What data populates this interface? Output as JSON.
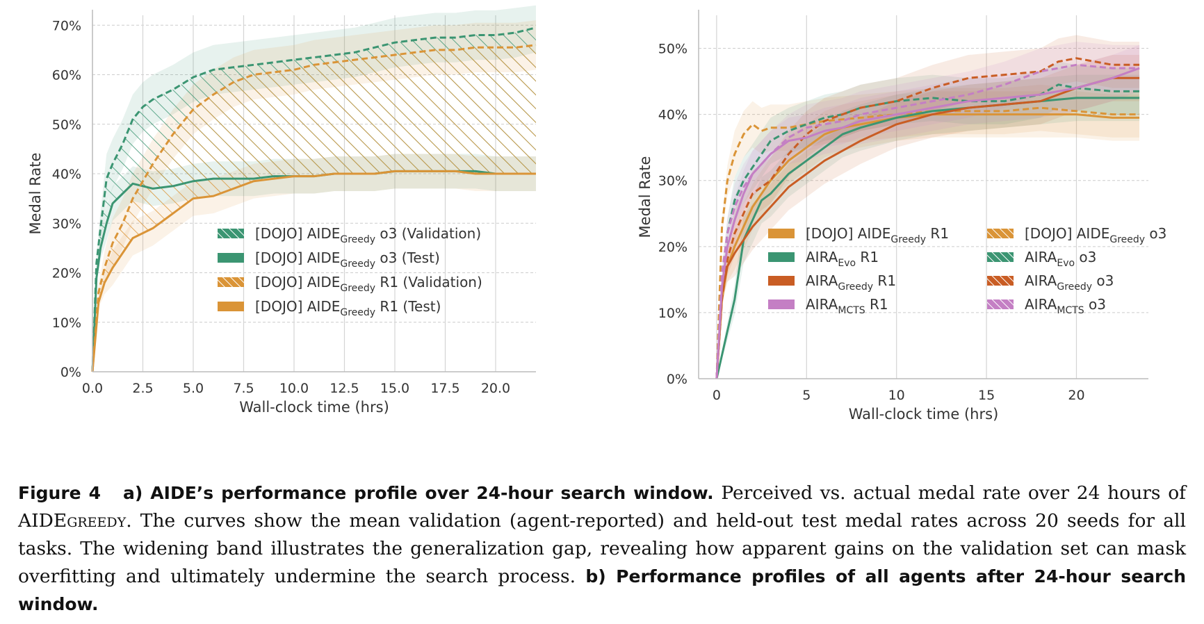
{
  "colors": {
    "green": "#3b9572",
    "orange": "#da9437",
    "rust": "#c95d24",
    "pink": "#c47fc4"
  },
  "chart_data": [
    {
      "type": "line",
      "panel": "a",
      "xlabel": "Wall-clock time (hrs)",
      "ylabel": "Medal Rate",
      "xlim": [
        0,
        22
      ],
      "ylim": [
        0,
        72
      ],
      "xticks": [
        "0.0",
        "2.5",
        "5.0",
        "7.5",
        "10.0",
        "12.5",
        "15.0",
        "17.5",
        "20.0"
      ],
      "yticks": [
        "0%",
        "10%",
        "20%",
        "30%",
        "40%",
        "50%",
        "60%",
        "70%"
      ],
      "grid": true,
      "legend_position": "center-right",
      "series": [
        {
          "name_main": "[DOJO] AIDE",
          "name_sub": "Greedy",
          "name_tail": "o3 (Validation)",
          "color": "green",
          "dash": true,
          "x": [
            0,
            0.2,
            0.4,
            0.7,
            1,
            1.5,
            2,
            2.5,
            3,
            4,
            5,
            6,
            7,
            8,
            9,
            10,
            11,
            12,
            13,
            14,
            15,
            16,
            17,
            18,
            19,
            20,
            21,
            22
          ],
          "y": [
            0,
            22,
            29,
            39,
            42,
            46,
            51,
            53.5,
            55,
            57,
            59.5,
            61,
            61.5,
            62,
            62.5,
            63,
            63.5,
            64,
            64.5,
            65.5,
            66.5,
            67,
            67.5,
            67.5,
            68,
            68,
            68.5,
            69.5
          ]
        },
        {
          "name_main": "[DOJO] AIDE",
          "name_sub": "Greedy",
          "name_tail": "o3 (Test)",
          "color": "green",
          "dash": false,
          "x": [
            0,
            0.2,
            0.4,
            0.7,
            1,
            1.5,
            2,
            2.5,
            3,
            4,
            5,
            6,
            7,
            8,
            9,
            10,
            11,
            12,
            13,
            14,
            15,
            16,
            17,
            18,
            19,
            20,
            21,
            22
          ],
          "y": [
            0,
            19,
            25,
            30,
            34,
            36,
            38,
            37.5,
            37,
            37.5,
            38.5,
            39,
            39,
            39,
            39.5,
            39.5,
            39.5,
            40,
            40,
            40,
            40.5,
            40.5,
            40.5,
            40.5,
            40.5,
            40,
            40,
            40
          ]
        },
        {
          "name_main": "[DOJO] AIDE",
          "name_sub": "Greedy",
          "name_tail": "R1 (Validation)",
          "color": "orange",
          "dash": true,
          "x": [
            0,
            0.3,
            0.6,
            1,
            1.5,
            2,
            3,
            4,
            5,
            6,
            7,
            8,
            9,
            10,
            11,
            12,
            13,
            14,
            15,
            16,
            17,
            18,
            19,
            20,
            21,
            22
          ],
          "y": [
            0,
            16,
            21,
            26,
            30,
            35,
            42,
            48,
            53,
            56,
            58.5,
            60,
            60.5,
            61,
            62,
            62.5,
            63,
            63.5,
            64,
            64.5,
            65,
            65,
            65.5,
            65.5,
            65.5,
            66
          ]
        },
        {
          "name_main": "[DOJO] AIDE",
          "name_sub": "Greedy",
          "name_tail": "R1 (Test)",
          "color": "orange",
          "dash": false,
          "x": [
            0,
            0.3,
            0.6,
            1,
            1.5,
            2,
            3,
            4,
            5,
            6,
            7,
            8,
            9,
            10,
            11,
            12,
            13,
            14,
            15,
            16,
            17,
            18,
            19,
            20,
            21,
            22
          ],
          "y": [
            0,
            14,
            18,
            21,
            24,
            27,
            29,
            32,
            35,
            35.5,
            37,
            38.5,
            39,
            39.5,
            39.5,
            40,
            40,
            40,
            40.5,
            40.5,
            40.5,
            40.5,
            40,
            40,
            40,
            40
          ]
        }
      ]
    },
    {
      "type": "line",
      "panel": "b",
      "xlabel": "Wall-clock time (hrs)",
      "ylabel": "Medal Rate",
      "xlim": [
        -1,
        24
      ],
      "ylim": [
        0,
        55
      ],
      "xticks": [
        "0",
        "5",
        "10",
        "15",
        "20"
      ],
      "yticks": [
        "0%",
        "10%",
        "20%",
        "30%",
        "40%",
        "50%"
      ],
      "grid": true,
      "legend_position": "center",
      "series": [
        {
          "name_main": "[DOJO] AIDE",
          "name_sub": "Greedy",
          "name_tail": "R1",
          "color": "orange",
          "dash": false,
          "x": [
            0,
            0.3,
            0.6,
            1,
            1.5,
            2,
            3,
            4,
            5,
            6,
            7,
            8,
            10,
            12,
            14,
            16,
            18,
            20,
            22,
            23.5
          ],
          "y": [
            0,
            12,
            17,
            20,
            23,
            26,
            30,
            33,
            35,
            37,
            38,
            38.5,
            39.5,
            40,
            40,
            40,
            40,
            40,
            39.5,
            39.5
          ]
        },
        {
          "name_main": "[DOJO] AIDE",
          "name_sub": "Greedy",
          "name_tail": "o3",
          "color": "orange",
          "dash": true,
          "x": [
            0,
            0.3,
            0.6,
            1,
            1.5,
            2,
            2.5,
            3,
            4,
            5,
            6,
            8,
            10,
            12,
            14,
            16,
            18,
            20,
            22,
            23.5
          ],
          "y": [
            0,
            23,
            30,
            34,
            37,
            38.5,
            37.5,
            38,
            38,
            38.5,
            39,
            39.5,
            40,
            40.5,
            40.5,
            40.5,
            41,
            40.5,
            40,
            40
          ]
        },
        {
          "name_main": "AIRA",
          "name_sub": "Evo",
          "name_tail": "R1",
          "color": "green",
          "dash": false,
          "x": [
            0,
            0.5,
            1,
            1.5,
            2,
            2.5,
            3,
            4,
            5,
            6,
            7,
            8,
            10,
            12,
            14,
            16,
            18,
            20,
            22,
            23.5
          ],
          "y": [
            0,
            6,
            12,
            21,
            24,
            27,
            28,
            31,
            33,
            35,
            37,
            38,
            39.5,
            40.5,
            41,
            41.5,
            42,
            42.5,
            42.5,
            42.5
          ]
        },
        {
          "name_main": "AIRA",
          "name_sub": "Evo",
          "name_tail": "o3",
          "color": "green",
          "dash": true,
          "x": [
            0,
            0.3,
            0.6,
            1,
            1.5,
            2,
            2.5,
            3,
            4,
            5,
            6,
            7,
            8,
            10,
            12,
            14,
            16,
            18,
            19,
            20,
            22,
            23.5
          ],
          "y": [
            0,
            15,
            22,
            27,
            30,
            32,
            34,
            36,
            37.5,
            38.5,
            39.5,
            40,
            41,
            42,
            42.5,
            42,
            42,
            43,
            44.5,
            44,
            43.5,
            43.5
          ]
        },
        {
          "name_main": "AIRA",
          "name_sub": "Greedy",
          "name_tail": "R1",
          "color": "rust",
          "dash": false,
          "x": [
            0,
            0.3,
            0.6,
            1,
            1.5,
            2,
            3,
            4,
            5,
            6,
            7,
            8,
            10,
            12,
            14,
            16,
            18,
            20,
            22,
            23.5
          ],
          "y": [
            0,
            13,
            17,
            19,
            21,
            23,
            26,
            29,
            31,
            33,
            34.5,
            36,
            38.5,
            40,
            41,
            41.5,
            42,
            44,
            45.5,
            45.5
          ]
        },
        {
          "name_main": "AIRA",
          "name_sub": "Greedy",
          "name_tail": "o3",
          "color": "rust",
          "dash": true,
          "x": [
            0,
            0.3,
            0.6,
            1,
            1.5,
            2,
            3,
            4,
            5,
            6,
            7,
            8,
            10,
            12,
            14,
            16,
            18,
            19,
            20,
            22,
            23.5
          ],
          "y": [
            0,
            12,
            18,
            22,
            25,
            28,
            30,
            34,
            37,
            39,
            40,
            41,
            42,
            44,
            45.5,
            46,
            46.5,
            48,
            48.5,
            47.5,
            47.5
          ]
        },
        {
          "name_main": "AIRA",
          "name_sub": "MCTS",
          "name_tail": "R1",
          "color": "pink",
          "dash": false,
          "x": [
            0,
            0.3,
            0.6,
            1,
            1.5,
            2,
            3,
            4,
            5,
            6,
            7,
            8,
            10,
            12,
            14,
            16,
            18,
            20,
            22,
            23.5
          ],
          "y": [
            0,
            14,
            20,
            24,
            28,
            31,
            34,
            36,
            36.5,
            37.5,
            38,
            39,
            40,
            41,
            42,
            42.5,
            43,
            44,
            45.5,
            47
          ]
        },
        {
          "name_main": "AIRA",
          "name_sub": "MCTS",
          "name_tail": "o3",
          "color": "pink",
          "dash": true,
          "x": [
            0,
            0.3,
            0.6,
            1,
            1.5,
            2,
            3,
            4,
            5,
            6,
            7,
            8,
            10,
            12,
            14,
            16,
            18,
            20,
            22,
            23.5
          ],
          "y": [
            0,
            16,
            22,
            26,
            29,
            31,
            34,
            36.5,
            38,
            38.5,
            39,
            40,
            41,
            42,
            43,
            44.5,
            46.5,
            47.5,
            47,
            47
          ]
        }
      ]
    }
  ],
  "caption": {
    "figure_label": "Figure 4",
    "part_a_title": "a) AIDE’s performance profile over 24-hour search window.",
    "text_1": " Perceived vs. actual medal rate over 24 hours of AIDE",
    "greedy_sc": "greedy",
    "text_2": ". The curves show the mean validation (agent-reported) and held-out test medal rates across 20 seeds for all tasks. The widening band illustrates the generalization gap, revealing how apparent gains on the validation set can mask overfitting and ultimately undermine the search process. ",
    "part_b_title": "b) Performance profiles of all agents after 24-hour search window."
  }
}
